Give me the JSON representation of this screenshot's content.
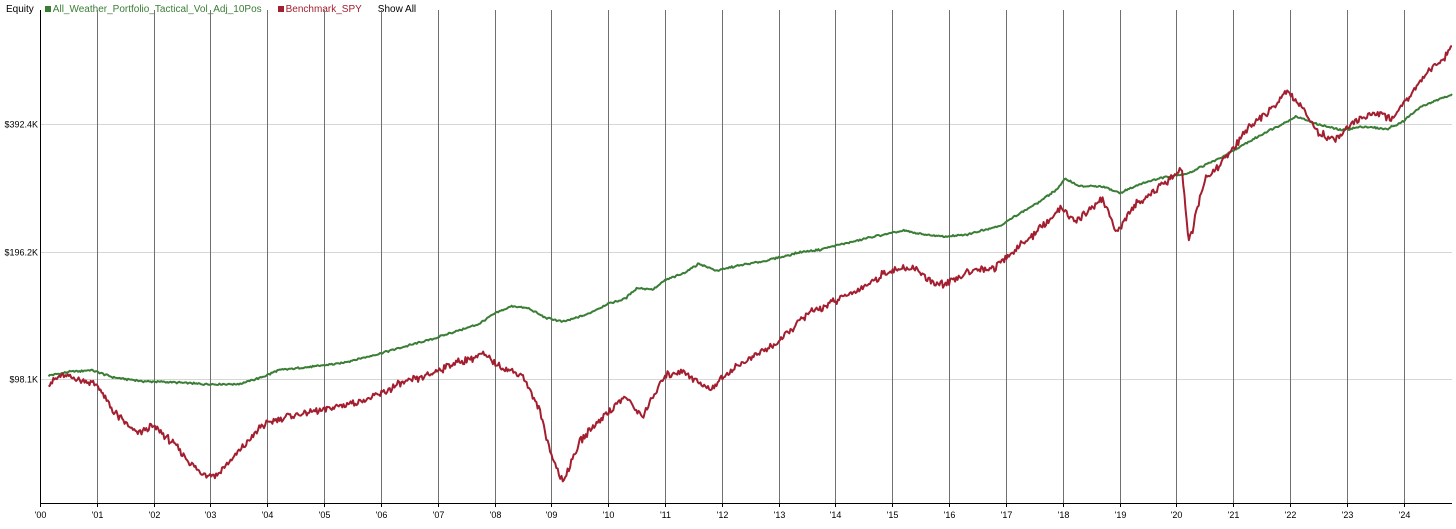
{
  "legend": {
    "title": "Equity",
    "show_all_label": "Show All",
    "items": [
      {
        "name": "All_Weather_Portfolio_Tactical_Vol_Adj_10Pos",
        "color": "#3a7d35",
        "icon": "square-swatch-icon"
      },
      {
        "name": "Benchmark_SPY",
        "color": "#a31e2f",
        "icon": "square-swatch-icon"
      }
    ]
  },
  "chart_data": {
    "type": "line",
    "title": "",
    "xlabel": "",
    "ylabel": "",
    "y_scale": "log",
    "x_range": [
      2000.0,
      2024.85
    ],
    "y_range_k": [
      50,
      700
    ],
    "grid": {
      "x": true,
      "y": true
    },
    "x_ticks": [
      {
        "label": "'00",
        "value": 2000
      },
      {
        "label": "'01",
        "value": 2001
      },
      {
        "label": "'02",
        "value": 2002
      },
      {
        "label": "'03",
        "value": 2003
      },
      {
        "label": "'04",
        "value": 2004
      },
      {
        "label": "'05",
        "value": 2005
      },
      {
        "label": "'06",
        "value": 2006
      },
      {
        "label": "'07",
        "value": 2007
      },
      {
        "label": "'08",
        "value": 2008
      },
      {
        "label": "'09",
        "value": 2009
      },
      {
        "label": "'10",
        "value": 2010
      },
      {
        "label": "'11",
        "value": 2011
      },
      {
        "label": "'12",
        "value": 2012
      },
      {
        "label": "'13",
        "value": 2013
      },
      {
        "label": "'14",
        "value": 2014
      },
      {
        "label": "'15",
        "value": 2015
      },
      {
        "label": "'16",
        "value": 2016
      },
      {
        "label": "'17",
        "value": 2017
      },
      {
        "label": "'18",
        "value": 2018
      },
      {
        "label": "'19",
        "value": 2019
      },
      {
        "label": "'20",
        "value": 2020
      },
      {
        "label": "'21",
        "value": 2021
      },
      {
        "label": "'22",
        "value": 2022
      },
      {
        "label": "'23",
        "value": 2023
      },
      {
        "label": "'24",
        "value": 2024
      }
    ],
    "y_ticks": [
      {
        "label": "$98.1K",
        "value_k": 98.1
      },
      {
        "label": "$196.2K",
        "value_k": 196.2
      },
      {
        "label": "$392.4K",
        "value_k": 392.4
      }
    ],
    "series": [
      {
        "name": "All_Weather_Portfolio_Tactical_Vol_Adj_10Pos",
        "color": "#3a7d35",
        "points_k": [
          [
            2000.15,
            100
          ],
          [
            2000.5,
            102
          ],
          [
            2000.9,
            103
          ],
          [
            2001.3,
            99
          ],
          [
            2001.8,
            97
          ],
          [
            2002.3,
            96.5
          ],
          [
            2002.9,
            95.5
          ],
          [
            2003.5,
            95.5
          ],
          [
            2003.9,
            99
          ],
          [
            2004.2,
            103
          ],
          [
            2004.8,
            105
          ],
          [
            2005.3,
            107
          ],
          [
            2005.9,
            112
          ],
          [
            2006.4,
            117
          ],
          [
            2006.9,
            122
          ],
          [
            2007.3,
            127
          ],
          [
            2007.7,
            132
          ],
          [
            2008.0,
            140
          ],
          [
            2008.3,
            146
          ],
          [
            2008.6,
            144
          ],
          [
            2008.9,
            137
          ],
          [
            2009.2,
            134
          ],
          [
            2009.6,
            139
          ],
          [
            2010.0,
            148
          ],
          [
            2010.3,
            152
          ],
          [
            2010.5,
            161
          ],
          [
            2010.8,
            160
          ],
          [
            2011.0,
            168
          ],
          [
            2011.3,
            174
          ],
          [
            2011.6,
            184
          ],
          [
            2011.9,
            177
          ],
          [
            2012.3,
            182
          ],
          [
            2012.7,
            186
          ],
          [
            2013.0,
            190
          ],
          [
            2013.4,
            196
          ],
          [
            2013.7,
            198
          ],
          [
            2014.0,
            203
          ],
          [
            2014.3,
            207
          ],
          [
            2014.6,
            212
          ],
          [
            2014.9,
            216
          ],
          [
            2015.2,
            220
          ],
          [
            2015.5,
            216
          ],
          [
            2015.9,
            213
          ],
          [
            2016.3,
            215
          ],
          [
            2016.6,
            221
          ],
          [
            2016.9,
            226
          ],
          [
            2017.2,
            240
          ],
          [
            2017.6,
            258
          ],
          [
            2017.9,
            276
          ],
          [
            2018.05,
            292
          ],
          [
            2018.3,
            280
          ],
          [
            2018.7,
            280
          ],
          [
            2019.0,
            270
          ],
          [
            2019.4,
            285
          ],
          [
            2019.8,
            295
          ],
          [
            2020.2,
            300
          ],
          [
            2020.4,
            310
          ],
          [
            2020.8,
            328
          ],
          [
            2021.2,
            352
          ],
          [
            2021.6,
            378
          ],
          [
            2021.9,
            395
          ],
          [
            2022.1,
            410
          ],
          [
            2022.5,
            392
          ],
          [
            2022.9,
            380
          ],
          [
            2023.3,
            388
          ],
          [
            2023.7,
            382
          ],
          [
            2024.0,
            400
          ],
          [
            2024.3,
            432
          ],
          [
            2024.6,
            448
          ],
          [
            2024.85,
            463
          ]
        ]
      },
      {
        "name": "Benchmark_SPY",
        "color": "#a31e2f",
        "points_k": [
          [
            2000.15,
            96
          ],
          [
            2000.4,
            100
          ],
          [
            2000.7,
            98
          ],
          [
            2001.0,
            95
          ],
          [
            2001.3,
            82
          ],
          [
            2001.7,
            73
          ],
          [
            2002.0,
            76
          ],
          [
            2002.4,
            68
          ],
          [
            2002.8,
            59
          ],
          [
            2003.1,
            58
          ],
          [
            2003.5,
            66
          ],
          [
            2003.9,
            76
          ],
          [
            2004.3,
            80
          ],
          [
            2004.8,
            82
          ],
          [
            2005.3,
            85
          ],
          [
            2005.8,
            88
          ],
          [
            2006.3,
            95
          ],
          [
            2006.8,
            100
          ],
          [
            2007.3,
            107
          ],
          [
            2007.8,
            112
          ],
          [
            2008.1,
            105
          ],
          [
            2008.5,
            100
          ],
          [
            2008.8,
            82
          ],
          [
            2009.0,
            65
          ],
          [
            2009.2,
            56
          ],
          [
            2009.5,
            70
          ],
          [
            2009.9,
            80
          ],
          [
            2010.3,
            89
          ],
          [
            2010.6,
            80
          ],
          [
            2011.0,
            100
          ],
          [
            2011.3,
            103
          ],
          [
            2011.6,
            96
          ],
          [
            2011.8,
            93
          ],
          [
            2012.2,
            104
          ],
          [
            2012.6,
            112
          ],
          [
            2013.0,
            120
          ],
          [
            2013.5,
            140
          ],
          [
            2014.0,
            150
          ],
          [
            2014.5,
            162
          ],
          [
            2014.9,
            176
          ],
          [
            2015.4,
            180
          ],
          [
            2015.7,
            165
          ],
          [
            2016.0,
            165
          ],
          [
            2016.4,
            178
          ],
          [
            2016.8,
            180
          ],
          [
            2017.2,
            200
          ],
          [
            2017.6,
            222
          ],
          [
            2018.0,
            250
          ],
          [
            2018.2,
            230
          ],
          [
            2018.7,
            262
          ],
          [
            2018.95,
            218
          ],
          [
            2019.3,
            255
          ],
          [
            2019.8,
            285
          ],
          [
            2020.1,
            306
          ],
          [
            2020.22,
            205
          ],
          [
            2020.5,
            290
          ],
          [
            2020.9,
            330
          ],
          [
            2021.3,
            390
          ],
          [
            2021.7,
            430
          ],
          [
            2021.95,
            470
          ],
          [
            2022.2,
            430
          ],
          [
            2022.5,
            375
          ],
          [
            2022.8,
            360
          ],
          [
            2023.1,
            395
          ],
          [
            2023.5,
            420
          ],
          [
            2023.8,
            405
          ],
          [
            2024.1,
            460
          ],
          [
            2024.4,
            520
          ],
          [
            2024.7,
            560
          ],
          [
            2024.85,
            600
          ]
        ]
      }
    ]
  }
}
